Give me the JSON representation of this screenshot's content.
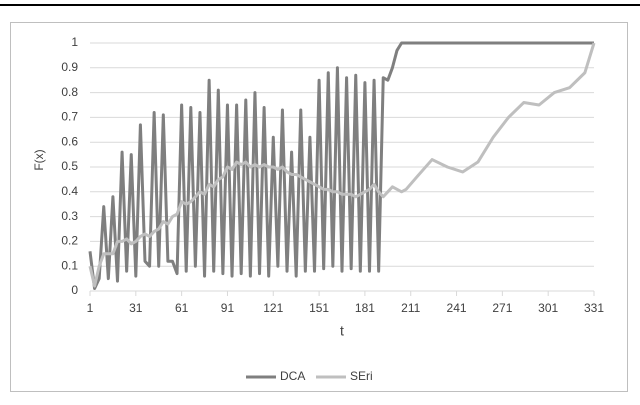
{
  "chart_data": {
    "type": "line",
    "x_label": "t",
    "y_label": "F(x)",
    "x": [
      1,
      4,
      7,
      10,
      13,
      16,
      19,
      22,
      25,
      28,
      31,
      34,
      37,
      40,
      43,
      46,
      49,
      52,
      55,
      58,
      61,
      64,
      67,
      70,
      73,
      76,
      79,
      82,
      85,
      88,
      91,
      94,
      97,
      100,
      103,
      106,
      109,
      112,
      115,
      118,
      121,
      124,
      127,
      130,
      133,
      136,
      139,
      142,
      145,
      148,
      151,
      154,
      157,
      160,
      163,
      166,
      169,
      172,
      175,
      178,
      181,
      184,
      187,
      190,
      193,
      196,
      199,
      202,
      205,
      208,
      215,
      225,
      235,
      245,
      255,
      265,
      275,
      285,
      295,
      305,
      315,
      325,
      331
    ],
    "series": [
      {
        "name": "DCA",
        "color": "#7f7f7f",
        "values": [
          0.16,
          0.01,
          0.05,
          0.34,
          0.05,
          0.38,
          0.04,
          0.56,
          0.08,
          0.55,
          0.06,
          0.67,
          0.12,
          0.1,
          0.72,
          0.1,
          0.71,
          0.12,
          0.12,
          0.07,
          0.75,
          0.08,
          0.74,
          0.1,
          0.72,
          0.06,
          0.85,
          0.08,
          0.81,
          0.07,
          0.75,
          0.06,
          0.75,
          0.07,
          0.77,
          0.06,
          0.8,
          0.07,
          0.74,
          0.06,
          0.62,
          0.1,
          0.73,
          0.08,
          0.56,
          0.06,
          0.73,
          0.08,
          0.62,
          0.08,
          0.85,
          0.09,
          0.88,
          0.1,
          0.9,
          0.08,
          0.86,
          0.09,
          0.87,
          0.08,
          0.84,
          0.08,
          0.85,
          0.08,
          0.86,
          0.85,
          0.9,
          0.97,
          1,
          1,
          1,
          1,
          1,
          1,
          1,
          1,
          1,
          1,
          1,
          1,
          1,
          1,
          1
        ]
      },
      {
        "name": "SEri",
        "color": "#bfbfbf",
        "values": [
          0.1,
          0.02,
          0.1,
          0.15,
          0.15,
          0.15,
          0.2,
          0.2,
          0.21,
          0.19,
          0.2,
          0.22,
          0.23,
          0.22,
          0.24,
          0.25,
          0.28,
          0.27,
          0.3,
          0.31,
          0.36,
          0.35,
          0.36,
          0.38,
          0.4,
          0.39,
          0.43,
          0.42,
          0.45,
          0.46,
          0.5,
          0.49,
          0.52,
          0.51,
          0.52,
          0.5,
          0.51,
          0.5,
          0.51,
          0.5,
          0.5,
          0.49,
          0.5,
          0.48,
          0.47,
          0.47,
          0.46,
          0.45,
          0.44,
          0.43,
          0.42,
          0.41,
          0.41,
          0.4,
          0.4,
          0.39,
          0.39,
          0.39,
          0.38,
          0.39,
          0.4,
          0.41,
          0.43,
          0.4,
          0.38,
          0.4,
          0.42,
          0.41,
          0.4,
          0.41,
          0.46,
          0.53,
          0.5,
          0.48,
          0.52,
          0.62,
          0.7,
          0.76,
          0.75,
          0.8,
          0.82,
          0.88,
          1
        ]
      }
    ],
    "xlim": [
      1,
      331
    ],
    "xticks": [
      1,
      31,
      61,
      91,
      121,
      151,
      181,
      211,
      241,
      271,
      301,
      331
    ],
    "ylim": [
      0,
      1
    ],
    "yticks": [
      0,
      0.1,
      0.2,
      0.3,
      0.4,
      0.5,
      0.6,
      0.7,
      0.8,
      0.9,
      1
    ],
    "grid": true,
    "legend": "bottom"
  }
}
